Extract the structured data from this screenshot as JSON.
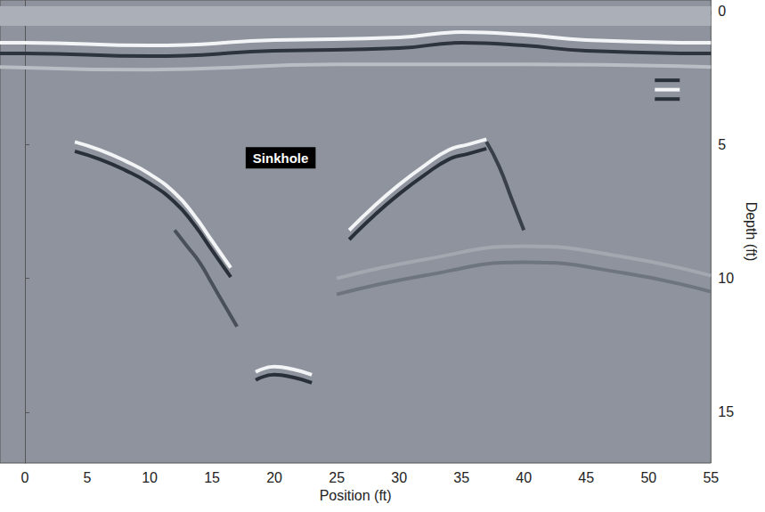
{
  "chart_data": {
    "type": "line",
    "xlabel": "Position (ft)",
    "ylabel": "Depth (ft)",
    "xlim": [
      -2,
      55
    ],
    "xticks": [
      0,
      5,
      10,
      15,
      20,
      25,
      30,
      35,
      40,
      45,
      50,
      55
    ],
    "ylim": [
      16.9,
      -0.4
    ],
    "yticks": [
      0,
      5,
      10,
      15
    ],
    "grid": false,
    "annotations": [
      {
        "text": "Sinkhole",
        "x": 20.5,
        "y": 5.5
      }
    ],
    "series": [
      {
        "color": "#abafb7",
        "x": [
          -2,
          55
        ],
        "values": [
          0.2,
          0.2
        ]
      },
      {
        "color": "#f2f4f6",
        "x": [
          -2,
          0,
          10,
          20,
          30,
          35,
          40,
          45,
          55
        ],
        "values": [
          1.2,
          1.2,
          1.3,
          1.1,
          1.0,
          0.8,
          0.9,
          1.1,
          1.2
        ]
      },
      {
        "color": "#2e343d",
        "x": [
          -2,
          0,
          10,
          20,
          30,
          35,
          40,
          45,
          55
        ],
        "values": [
          1.6,
          1.6,
          1.7,
          1.5,
          1.4,
          1.2,
          1.3,
          1.5,
          1.6
        ]
      },
      {
        "color": "#b9bdc4",
        "x": [
          -2,
          10,
          25,
          40,
          55
        ],
        "values": [
          2.1,
          2.2,
          2.0,
          2.0,
          2.1
        ]
      },
      {
        "color": "#f2f4f6",
        "x": [
          4,
          6,
          8,
          10,
          12,
          13.5,
          15,
          16.5
        ],
        "values": [
          4.9,
          5.2,
          5.6,
          6.1,
          6.8,
          7.6,
          8.6,
          9.6
        ]
      },
      {
        "color": "#2a3039",
        "x": [
          4,
          6,
          8,
          10,
          12,
          13.5,
          15,
          16.5
        ],
        "values": [
          5.25,
          5.55,
          5.95,
          6.45,
          7.15,
          7.95,
          8.95,
          9.95
        ]
      },
      {
        "color": "#4a505a",
        "x": [
          12,
          13,
          14,
          15,
          16,
          17
        ],
        "values": [
          8.2,
          8.8,
          9.4,
          10.2,
          11,
          11.8
        ]
      },
      {
        "color": "#f2f4f6",
        "x": [
          26,
          28,
          30,
          32,
          34,
          35.5,
          37
        ],
        "values": [
          8.2,
          7.3,
          6.5,
          5.8,
          5.2,
          5.0,
          4.8
        ]
      },
      {
        "color": "#2a3039",
        "x": [
          26,
          28,
          30,
          32,
          34,
          35.5,
          37
        ],
        "values": [
          8.55,
          7.65,
          6.85,
          6.15,
          5.55,
          5.35,
          5.15
        ]
      },
      {
        "color": "#3a404a",
        "x": [
          37,
          38,
          39,
          40
        ],
        "values": [
          4.9,
          5.8,
          7,
          8.2
        ]
      },
      {
        "color": "#f2f4f6",
        "x": [
          18.5,
          20,
          21.5,
          23
        ],
        "values": [
          13.5,
          13.3,
          13.4,
          13.6
        ]
      },
      {
        "color": "#2a3039",
        "x": [
          18.5,
          20,
          21.5,
          23
        ],
        "values": [
          13.8,
          13.6,
          13.7,
          13.9
        ]
      },
      {
        "color": "#2a3039",
        "x": [
          50.5,
          52.5
        ],
        "values": [
          2.6,
          2.6
        ]
      },
      {
        "color": "#f2f4f6",
        "x": [
          50.5,
          52.5
        ],
        "values": [
          2.95,
          2.95
        ]
      },
      {
        "color": "#2a3039",
        "x": [
          50.5,
          52.5
        ],
        "values": [
          3.3,
          3.3
        ]
      },
      {
        "color": "#a3a8b0",
        "x": [
          25,
          32,
          40,
          48,
          55
        ],
        "values": [
          10,
          9.3,
          8.8,
          9.2,
          9.9
        ]
      },
      {
        "color": "#6f757f",
        "x": [
          25,
          32,
          40,
          48,
          55
        ],
        "values": [
          10.6,
          9.9,
          9.4,
          9.8,
          10.5
        ]
      }
    ]
  }
}
